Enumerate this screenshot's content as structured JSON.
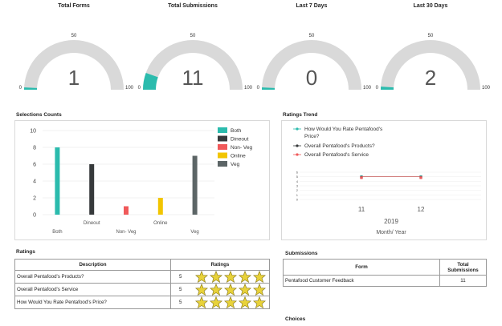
{
  "gauges": [
    {
      "title": "Total Forms",
      "value": "1",
      "level": 1,
      "min_label": "0",
      "mid_label": "50",
      "max_label": "100"
    },
    {
      "title": "Total Submissions",
      "value": "11",
      "level": 11,
      "min_label": "0",
      "mid_label": "50",
      "max_label": "100"
    },
    {
      "title": "Last 7 Days",
      "value": "0",
      "level": 0,
      "min_label": "0",
      "mid_label": "50",
      "max_label": "100"
    },
    {
      "title": "Last 30 Days",
      "value": "2",
      "level": 2,
      "min_label": "0",
      "mid_label": "50",
      "max_label": "100"
    }
  ],
  "gauge_colors": {
    "fill": "#2bbbad",
    "track": "#d9d9d9"
  },
  "selections": {
    "title": "Selections Counts",
    "chart_data": {
      "type": "bar",
      "categories": [
        "Both",
        "Dineout",
        "Non- Veg",
        "Online",
        "Veg"
      ],
      "values": [
        8,
        6,
        1,
        2,
        7
      ],
      "ylim": [
        0,
        10
      ],
      "yticks": [
        "0",
        "2",
        "4",
        "6",
        "8",
        "10"
      ],
      "colors": [
        "#2bbbad",
        "#36393b",
        "#f0595a",
        "#f2c500",
        "#5c6566"
      ],
      "legend": [
        "Both",
        "Dineout",
        "Non- Veg",
        "Online",
        "Veg"
      ],
      "legend_position": "top-right"
    }
  },
  "trend": {
    "title": "Ratings Trend",
    "chart_data": {
      "type": "line",
      "x": [
        "11",
        "12"
      ],
      "year": "2019",
      "xlabel": "Month/ Year",
      "ylim": [
        0,
        6
      ],
      "yticks": [
        "0",
        "1",
        "2",
        "3",
        "4",
        "5",
        "6"
      ],
      "series": [
        {
          "name": "How Would You Rate Pentafood's Price?",
          "color": "#2bbbad",
          "values": [
            5,
            5
          ]
        },
        {
          "name": "Overall Pentafood's Products?",
          "color": "#36393b",
          "values": [
            5,
            5
          ]
        },
        {
          "name": "Overall Pentafood's Service",
          "color": "#f0595a",
          "values": [
            5,
            5
          ]
        }
      ]
    }
  },
  "ratings": {
    "title": "Ratings",
    "headers": {
      "description": "Description",
      "ratings": "Ratings"
    },
    "rows": [
      {
        "description": "Overall Pentafood's Products?",
        "score": "5",
        "stars": 5
      },
      {
        "description": "Overall Pentafood's Service",
        "score": "5",
        "stars": 5
      },
      {
        "description": "How Would You Rate Pentafood's Price?",
        "score": "5",
        "stars": 5
      }
    ]
  },
  "submissions": {
    "title": "Submissions",
    "headers": {
      "form": "Form",
      "total_line1": "Total",
      "total_line2": "Submissions"
    },
    "rows": [
      {
        "form": "Pentafood Customer Feedback",
        "total": "11"
      }
    ]
  },
  "choices": {
    "title": "Choices"
  }
}
